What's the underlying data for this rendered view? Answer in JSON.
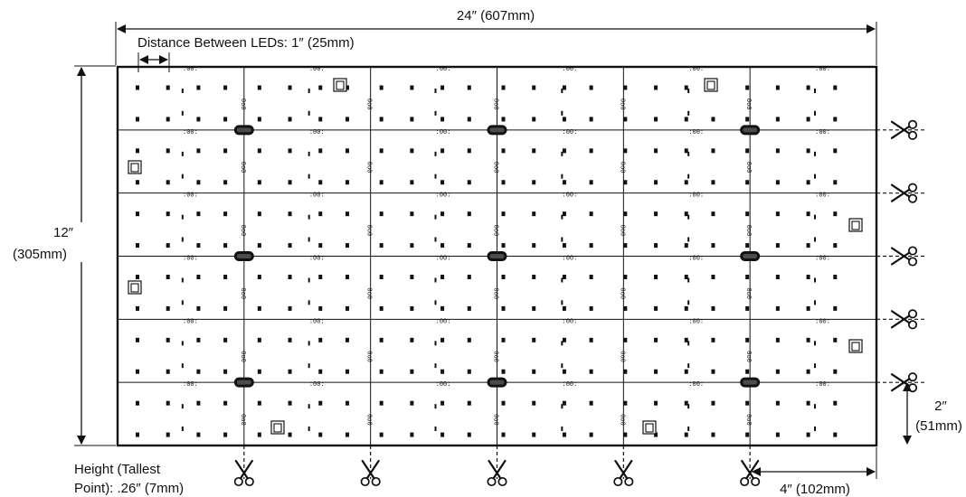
{
  "labels": {
    "total_width": "24″ (607mm)",
    "led_spacing": "Distance Between LEDs: 1″ (25mm)",
    "total_height_in": "12″",
    "total_height_mm": "(305mm)",
    "strip_height_in": "2″",
    "strip_height_mm": "(51mm)",
    "section_width": "4″ (102mm)",
    "tallest_point_line1": "Height (Tallest",
    "tallest_point_line2": "Point): .26″ (7mm)"
  },
  "panel": {
    "columns": 6,
    "rows": 6,
    "led_columns": 24,
    "led_rows": 12
  },
  "colors": {
    "ink": "#111111",
    "background": "#ffffff"
  },
  "icons": {
    "cut_mark": "scissors-icon",
    "connector": "connector-icon",
    "driver_chip": "driver-chip-icon"
  }
}
